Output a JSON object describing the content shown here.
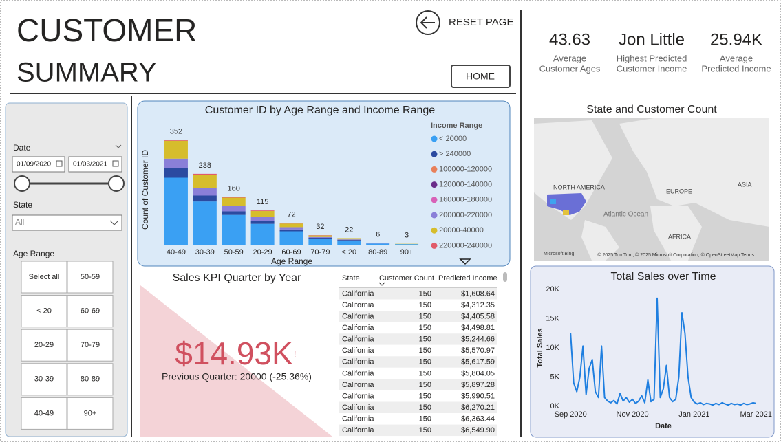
{
  "header": {
    "title_lines": [
      "CUSTOMER",
      "SUMMARY"
    ],
    "reset_button": "RESET PAGE",
    "home_button": "HOME"
  },
  "kpis": [
    {
      "value": 43.63,
      "label": [
        "Average",
        "Customer Ages"
      ]
    },
    {
      "value": "Jon Little",
      "label": [
        "Highest Predicted",
        "Customer Income"
      ]
    },
    {
      "value": "25.94K",
      "label": [
        "Average",
        "Predicted Income"
      ]
    }
  ],
  "filters": {
    "date": {
      "label": "Date",
      "start": "01/09/2020",
      "end": "01/03/2021"
    },
    "state": {
      "label": "State",
      "selected": "All"
    },
    "age_range": {
      "label": "Age Range",
      "options": [
        "Select all",
        "50-59",
        "< 20",
        "60-69",
        "20-29",
        "70-79",
        "30-39",
        "80-89",
        "40-49",
        "90+"
      ]
    }
  },
  "map": {
    "title": "State and Customer Count",
    "labels": [
      "NORTH AMERICA",
      "EUROPE",
      "ASIA",
      "Atlantic Ocean",
      "AFRICA"
    ],
    "provider": "Microsoft Bing",
    "attribution": "© 2025 TomTom, © 2025 Microsoft Corporation, © OpenStreetMap Terms"
  },
  "sales_kpi": {
    "title": "Sales KPI Quarter by Year",
    "value": "$14.93K",
    "alert": "!",
    "comparison": "Previous Quarter: 20000 (-25.36%)"
  },
  "table": {
    "columns": [
      "State",
      "Customer Count",
      "Predicted Income"
    ],
    "rows": [
      [
        "California",
        150,
        "$1,608.64"
      ],
      [
        "California",
        150,
        "$4,312.35"
      ],
      [
        "California",
        150,
        "$4,405.58"
      ],
      [
        "California",
        150,
        "$4,498.81"
      ],
      [
        "California",
        150,
        "$5,244.66"
      ],
      [
        "California",
        150,
        "$5,570.97"
      ],
      [
        "California",
        150,
        "$5,617.59"
      ],
      [
        "California",
        150,
        "$5,804.05"
      ],
      [
        "California",
        150,
        "$5,897.28"
      ],
      [
        "California",
        150,
        "$5,990.51"
      ],
      [
        "California",
        150,
        "$6,270.21"
      ],
      [
        "California",
        150,
        "$6,363.44"
      ],
      [
        "California",
        150,
        "$6,549.90"
      ]
    ]
  },
  "chart_data": [
    {
      "type": "bar",
      "title": "Customer ID by Age Range and Income Range",
      "y_label": "Count of Customer ID",
      "x_label": "Age Range",
      "legend_title": "Income Range",
      "categories": [
        "40-49",
        "30-39",
        "50-59",
        "20-29",
        "60-69",
        "70-79",
        "< 20",
        "80-89",
        "90+"
      ],
      "totals": [
        352,
        238,
        160,
        115,
        72,
        32,
        22,
        6,
        3
      ],
      "ylim": [
        0,
        360
      ],
      "series": [
        {
          "name": "< 20000",
          "color": "#3aa0f3",
          "values": [
            225,
            145,
            100,
            70,
            45,
            20,
            14,
            4,
            2
          ]
        },
        {
          "name": "> 240000",
          "color": "#2b4aa0",
          "values": [
            32,
            20,
            12,
            10,
            6,
            3,
            2,
            0,
            0
          ]
        },
        {
          "name": "100000-120000",
          "color": "#e8805a",
          "values": [
            0,
            0,
            0,
            0,
            0,
            0,
            0,
            0,
            0
          ]
        },
        {
          "name": "120000-140000",
          "color": "#6a2d8a",
          "values": [
            0,
            0,
            0,
            0,
            0,
            0,
            0,
            0,
            0
          ]
        },
        {
          "name": "160000-180000",
          "color": "#d862b8",
          "values": [
            0,
            0,
            0,
            0,
            0,
            0,
            0,
            0,
            0
          ]
        },
        {
          "name": "200000-220000",
          "color": "#8a7fd8",
          "values": [
            32,
            25,
            18,
            13,
            8,
            3,
            2,
            1,
            0
          ]
        },
        {
          "name": "20000-40000",
          "color": "#d6bd2c",
          "values": [
            60,
            45,
            28,
            20,
            12,
            5,
            4,
            1,
            1
          ]
        },
        {
          "name": "220000-240000",
          "color": "#e05b6a",
          "values": [
            3,
            3,
            2,
            2,
            1,
            1,
            0,
            0,
            0
          ]
        }
      ]
    },
    {
      "type": "line",
      "title": "Total Sales over Time",
      "y_label": "Total Sales",
      "x_label": "Date",
      "color": "#1f7fe0",
      "grid": false,
      "xlim": [
        -0.25,
        6.25
      ],
      "xticks": [
        {
          "value": 0,
          "label": "Sep 2020"
        },
        {
          "value": 2,
          "label": "Nov 2020"
        },
        {
          "value": 4,
          "label": "Jan 2021"
        },
        {
          "value": 6,
          "label": "Mar 2021"
        }
      ],
      "ylim": [
        0,
        20000
      ],
      "yticks": [
        {
          "value": 0,
          "label": "0K"
        },
        {
          "value": 5000,
          "label": "5K"
        },
        {
          "value": 10000,
          "label": "10K"
        },
        {
          "value": 15000,
          "label": "15K"
        },
        {
          "value": 20000,
          "label": "20K"
        }
      ],
      "x": [
        0,
        0.1,
        0.2,
        0.3,
        0.4,
        0.5,
        0.6,
        0.7,
        0.8,
        0.9,
        1,
        1.1,
        1.2,
        1.3,
        1.4,
        1.5,
        1.6,
        1.7,
        1.8,
        1.9,
        2,
        2.1,
        2.2,
        2.3,
        2.4,
        2.5,
        2.6,
        2.7,
        2.8,
        2.9,
        3,
        3.1,
        3.2,
        3.3,
        3.4,
        3.5,
        3.6,
        3.7,
        3.8,
        3.9,
        4,
        4.1,
        4.2,
        4.3,
        4.4,
        4.5,
        4.6,
        4.7,
        4.8,
        4.9,
        5,
        5.1,
        5.2,
        5.3,
        5.4,
        5.5,
        5.6,
        5.7,
        5.8,
        5.9,
        6
      ],
      "values": [
        12500,
        4000,
        2500,
        5000,
        10300,
        2000,
        6500,
        8000,
        2500,
        1500,
        10300,
        1500,
        900,
        600,
        1000,
        400,
        2200,
        900,
        1500,
        700,
        1200,
        500,
        900,
        1800,
        600,
        4500,
        800,
        1200,
        18500,
        1500,
        3000,
        7000,
        1500,
        800,
        1200,
        5000,
        16000,
        12500,
        5000,
        1500,
        700,
        400,
        600,
        300,
        500,
        400,
        200,
        500,
        300,
        600,
        400,
        200,
        500,
        300,
        400,
        200,
        500,
        300,
        400,
        600,
        500
      ]
    }
  ]
}
